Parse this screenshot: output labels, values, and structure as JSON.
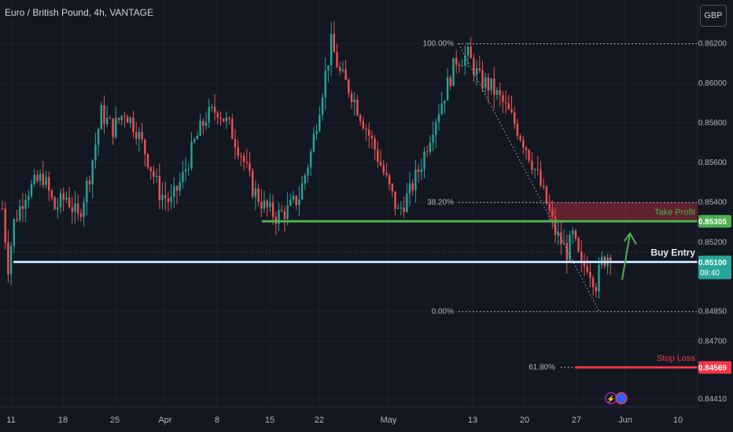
{
  "header": {
    "title": "Euro / British Pound, 4h, VANTAGE",
    "currency_button": "GBP"
  },
  "colors": {
    "background": "#131722",
    "grid": "#1e222d",
    "up": "#26a69a",
    "down": "#ef5350",
    "take_profit": "#4caf50",
    "entry": "#bbdefb",
    "stop": "#f23645",
    "fib": "#b2b5be"
  },
  "chart_data": {
    "type": "candlestick",
    "title": "Euro / British Pound, 4h, VANTAGE",
    "ylim": [
      0.8437,
      0.8642
    ],
    "y_ticks": [
      "0.84410",
      "0.84700",
      "0.84850",
      "0.85200",
      "0.85400",
      "0.85600",
      "0.85800",
      "0.86000",
      "0.86200"
    ],
    "x_ticks": [
      "11",
      "18",
      "25",
      "Apr",
      "8",
      "15",
      "22",
      "May",
      "13",
      "20",
      "27",
      "Jun",
      "10"
    ],
    "price_path": [
      [
        0,
        0.8537
      ],
      [
        2,
        0.8508
      ],
      [
        4,
        0.853
      ],
      [
        8,
        0.8545
      ],
      [
        14,
        0.8553
      ],
      [
        18,
        0.8537
      ],
      [
        22,
        0.8543
      ],
      [
        26,
        0.8532
      ],
      [
        30,
        0.8554
      ],
      [
        34,
        0.8585
      ],
      [
        38,
        0.8577
      ],
      [
        42,
        0.8586
      ],
      [
        46,
        0.8577
      ],
      [
        50,
        0.8562
      ],
      [
        54,
        0.8545
      ],
      [
        58,
        0.854
      ],
      [
        62,
        0.8553
      ],
      [
        66,
        0.857
      ],
      [
        70,
        0.8583
      ],
      [
        74,
        0.8587
      ],
      [
        78,
        0.8578
      ],
      [
        82,
        0.8565
      ],
      [
        86,
        0.8547
      ],
      [
        90,
        0.8538
      ],
      [
        94,
        0.8533
      ],
      [
        98,
        0.8536
      ],
      [
        102,
        0.8543
      ],
      [
        106,
        0.8565
      ],
      [
        110,
        0.8597
      ],
      [
        113,
        0.862
      ],
      [
        116,
        0.8605
      ],
      [
        120,
        0.8595
      ],
      [
        124,
        0.8581
      ],
      [
        128,
        0.8567
      ],
      [
        132,
        0.8551
      ],
      [
        136,
        0.8535
      ],
      [
        140,
        0.8545
      ],
      [
        144,
        0.856
      ],
      [
        148,
        0.8579
      ],
      [
        152,
        0.8595
      ],
      [
        156,
        0.8612
      ],
      [
        160,
        0.8614
      ],
      [
        164,
        0.8602
      ],
      [
        168,
        0.8598
      ],
      [
        172,
        0.859
      ],
      [
        176,
        0.858
      ],
      [
        180,
        0.8568
      ],
      [
        184,
        0.8553
      ],
      [
        188,
        0.8535
      ],
      [
        190,
        0.8525
      ],
      [
        194,
        0.8515
      ],
      [
        196,
        0.8523
      ],
      [
        199,
        0.8507
      ],
      [
        201,
        0.8509
      ],
      [
        204,
        0.8499
      ],
      [
        206,
        0.851
      ],
      [
        209,
        0.8515
      ]
    ],
    "levels": [
      {
        "label": "Take Profit",
        "value": 0.85305,
        "price_label": "0.85305"
      },
      {
        "label": "Buy Entry",
        "value": 0.851,
        "price_label": "0.85100",
        "countdown": "08:40"
      },
      {
        "label": "Stop Loss",
        "value": 0.84569,
        "price_label": "0.84569"
      }
    ],
    "fibonacci": [
      {
        "label": "100.00%",
        "value": 0.862
      },
      {
        "label": "38.20%",
        "value": 0.854
      },
      {
        "label": "0.00%",
        "value": 0.8485
      },
      {
        "label": "61.80%",
        "value": 0.84569
      }
    ]
  }
}
